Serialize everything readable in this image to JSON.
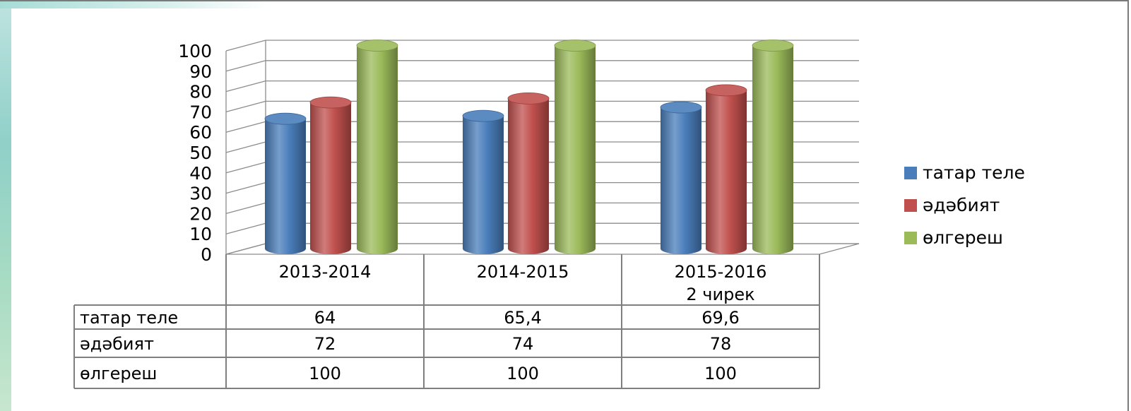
{
  "chart_data": {
    "type": "bar",
    "categories": [
      "2013-2014",
      "2014-2015",
      "2015-2016\n2 чирек"
    ],
    "series": [
      {
        "name": "татар теле",
        "values": [
          64,
          65.4,
          69.6
        ],
        "labels": [
          "64",
          "65,4",
          "69,6"
        ],
        "color": "#4a7ebb"
      },
      {
        "name": "әдәбият",
        "values": [
          72,
          74,
          78
        ],
        "labels": [
          "72",
          "74",
          "78"
        ],
        "color": "#c0504d"
      },
      {
        "name": "өлгереш",
        "values": [
          100,
          100,
          100
        ],
        "labels": [
          "100",
          "100",
          "100"
        ],
        "color": "#9bbb59"
      }
    ],
    "ylim": [
      0,
      100
    ],
    "yticks": [
      "0",
      "10",
      "20",
      "30",
      "40",
      "50",
      "60",
      "70",
      "80",
      "90",
      "100"
    ],
    "grid": true,
    "legend_position": "right",
    "data_table": true
  }
}
